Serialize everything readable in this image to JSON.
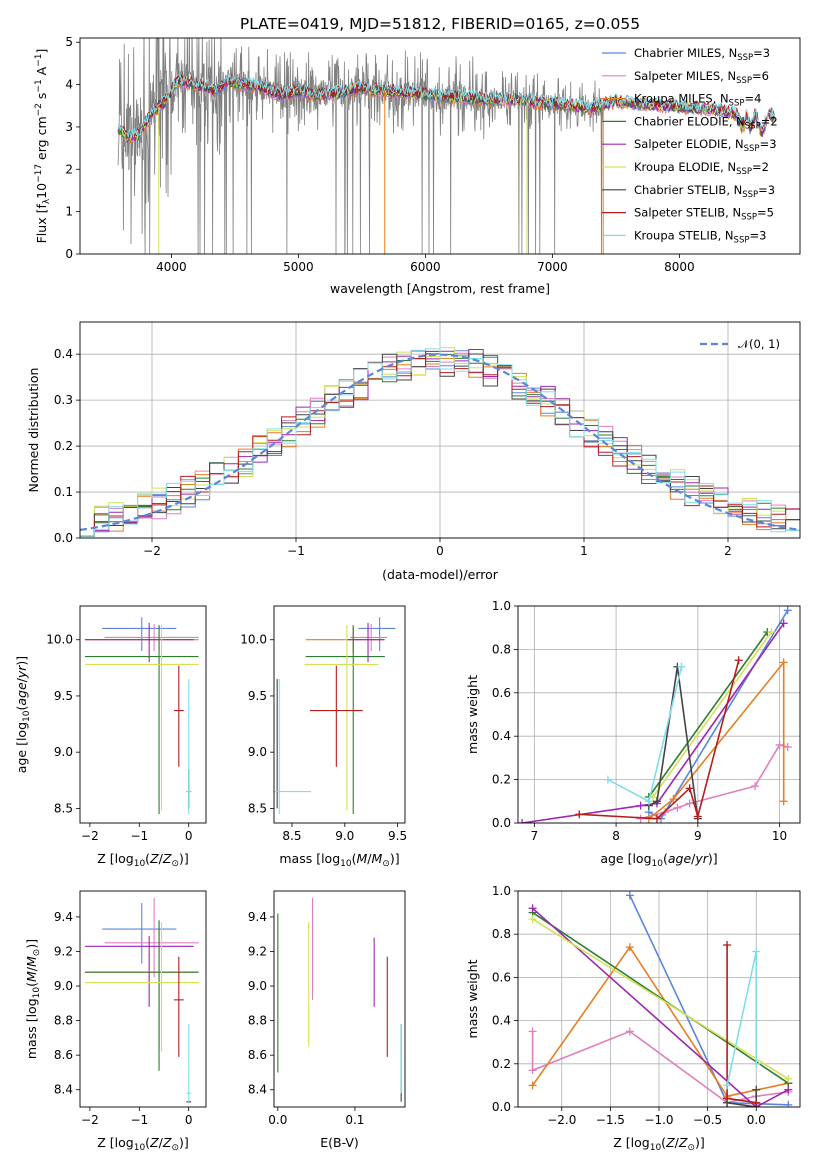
{
  "title": "PLATE=0419, MJD=51812, FIBERID=0165, z=0.055",
  "colors": {
    "chabrier_miles": "#5b86d9",
    "salpeter_miles": "#e07fbd",
    "kroupa_miles": "#e67e22",
    "chabrier_elodie": "#2e7d32",
    "salpeter_elodie": "#9c27b0",
    "kroupa_elodie": "#d4e157",
    "chabrier_stelib": "#444444",
    "salpeter_stelib": "#b71c1c",
    "kroupa_stelib": "#80deea",
    "data": "#808080",
    "normal": "#5b86d9"
  },
  "legend": [
    {
      "key": "chabrier_miles",
      "label": "Chabrier MILES, N",
      "sub": "SSP",
      "tail": "=3"
    },
    {
      "key": "salpeter_miles",
      "label": "Salpeter MILES, N",
      "sub": "SSP",
      "tail": "=6"
    },
    {
      "key": "kroupa_miles",
      "label": "Kroupa MILES, N",
      "sub": "SSP",
      "tail": "=4"
    },
    {
      "key": "chabrier_elodie",
      "label": "Chabrier ELODIE, N",
      "sub": "SSP",
      "tail": "=2"
    },
    {
      "key": "salpeter_elodie",
      "label": "Salpeter ELODIE, N",
      "sub": "SSP",
      "tail": "=3"
    },
    {
      "key": "kroupa_elodie",
      "label": "Kroupa ELODIE, N",
      "sub": "SSP",
      "tail": "=2"
    },
    {
      "key": "chabrier_stelib",
      "label": "Chabrier STELIB, N",
      "sub": "SSP",
      "tail": "=3"
    },
    {
      "key": "salpeter_stelib",
      "label": "Salpeter STELIB, N",
      "sub": "SSP",
      "tail": "=5"
    },
    {
      "key": "kroupa_stelib",
      "label": "Kroupa STELIB, N",
      "sub": "SSP",
      "tail": "=3"
    }
  ],
  "chart_data": [
    {
      "id": "spectrum",
      "type": "line",
      "xlabel": "wavelength [Angstrom, rest frame]",
      "ylabel": "Flux [f_λ 10^-17 erg cm^-2 s^-1 A^-1]",
      "xlim": [
        3280,
        8950
      ],
      "ylim": [
        0,
        5.1
      ],
      "xticks": [
        4000,
        5000,
        6000,
        7000,
        8000
      ],
      "yticks": [
        0,
        1,
        2,
        3,
        4,
        5
      ],
      "continuum": [
        [
          3580,
          3.0
        ],
        [
          3650,
          2.75
        ],
        [
          3750,
          2.85
        ],
        [
          3850,
          3.35
        ],
        [
          3950,
          3.6
        ],
        [
          4050,
          4.1
        ],
        [
          4150,
          4.05
        ],
        [
          4250,
          3.95
        ],
        [
          4350,
          3.85
        ],
        [
          4450,
          4.1
        ],
        [
          4550,
          4.0
        ],
        [
          4700,
          3.95
        ],
        [
          4850,
          3.75
        ],
        [
          5000,
          3.85
        ],
        [
          5150,
          3.75
        ],
        [
          5300,
          3.8
        ],
        [
          5500,
          3.9
        ],
        [
          5700,
          3.85
        ],
        [
          5900,
          3.8
        ],
        [
          6100,
          3.72
        ],
        [
          6300,
          3.7
        ],
        [
          6500,
          3.65
        ],
        [
          6700,
          3.65
        ],
        [
          6900,
          3.58
        ],
        [
          7100,
          3.52
        ],
        [
          7300,
          3.45
        ],
        [
          7500,
          3.6
        ],
        [
          7700,
          3.55
        ],
        [
          7900,
          3.5
        ],
        [
          8100,
          3.45
        ],
        [
          8300,
          3.4
        ],
        [
          8450,
          3.3
        ],
        [
          8500,
          2.95
        ],
        [
          8530,
          3.3
        ],
        [
          8560,
          2.95
        ],
        [
          8600,
          3.3
        ],
        [
          8650,
          2.85
        ],
        [
          8700,
          3.3
        ],
        [
          8750,
          3.25
        ]
      ]
    },
    {
      "id": "residuals",
      "type": "histogram",
      "xlabel": "(data-model)/error",
      "ylabel": "Normed distribution",
      "xlim": [
        -2.5,
        2.5
      ],
      "ylim": [
        0,
        0.47
      ],
      "xticks": [
        -2,
        -1,
        0,
        1,
        2
      ],
      "yticks": [
        0.0,
        0.1,
        0.2,
        0.3,
        0.4
      ],
      "normal_label": "𝒩(0, 1)",
      "bin_width": 0.1
    },
    {
      "id": "age_vs_Z",
      "type": "scatter",
      "xlabel": "Z [log10(Z/Z☉)]",
      "ylabel": "age [log10(age/yr)]",
      "xlim": [
        -2.2,
        0.35
      ],
      "ylim": [
        8.37,
        10.3
      ],
      "xticks": [
        -2,
        -1,
        0
      ],
      "yticks": [
        8.5,
        9.0,
        9.5,
        10.0
      ],
      "points": [
        {
          "key": "chabrier_miles",
          "x": -0.95,
          "xerr": [
            0.8,
            0.7
          ],
          "y": 10.1,
          "yerr": [
            0.2,
            0.1
          ]
        },
        {
          "key": "salpeter_miles",
          "x": -0.7,
          "xerr": [
            1.0,
            0.9
          ],
          "y": 10.02,
          "yerr": [
            0.12,
            0.12
          ]
        },
        {
          "key": "kroupa_miles",
          "x": -0.6,
          "xerr": [
            1.5,
            0.8
          ],
          "y": 10.0,
          "yerr": [
            0.12,
            0.12
          ]
        },
        {
          "key": "chabrier_elodie",
          "x": -0.6,
          "xerr": [
            1.5,
            0.8
          ],
          "y": 9.85,
          "yerr": [
            1.4,
            0.28
          ]
        },
        {
          "key": "salpeter_elodie",
          "x": -0.8,
          "xerr": [
            1.3,
            0.9
          ],
          "y": 10.0,
          "yerr": [
            0.2,
            0.15
          ]
        },
        {
          "key": "kroupa_elodie",
          "x": -0.55,
          "xerr": [
            1.55,
            0.75
          ],
          "y": 9.78,
          "yerr": [
            1.3,
            0.35
          ]
        },
        {
          "key": "chabrier_stelib",
          "x": 0.0,
          "xerr": [
            0.05,
            0.05
          ],
          "y": 8.65,
          "yerr": [
            0.15,
            0.2
          ]
        },
        {
          "key": "salpeter_stelib",
          "x": -0.2,
          "xerr": [
            0.1,
            0.1
          ],
          "y": 9.37,
          "yerr": [
            0.5,
            0.4
          ]
        },
        {
          "key": "kroupa_stelib",
          "x": 0.0,
          "xerr": [
            0.05,
            0.05
          ],
          "y": 8.65,
          "yerr": [
            0.2,
            1.0
          ]
        }
      ]
    },
    {
      "id": "age_vs_mass",
      "type": "scatter",
      "xlabel": "mass [log10(M/M☉)]",
      "ylabel": "",
      "xlim": [
        8.33,
        9.57
      ],
      "ylim": [
        8.37,
        10.3
      ],
      "xticks": [
        8.5,
        9.0,
        9.5
      ],
      "yticks": [
        8.5,
        9.0,
        9.5,
        10.0
      ],
      "points": [
        {
          "key": "chabrier_miles",
          "x": 9.33,
          "xerr": [
            0.2,
            0.15
          ],
          "y": 10.1,
          "yerr": [
            0.2,
            0.1
          ]
        },
        {
          "key": "salpeter_miles",
          "x": 9.25,
          "xerr": [
            0.2,
            0.15
          ],
          "y": 10.02,
          "yerr": [
            0.12,
            0.12
          ]
        },
        {
          "key": "kroupa_miles",
          "x": 9.08,
          "xerr": [
            0.45,
            0.3
          ],
          "y": 10.0,
          "yerr": [
            0.12,
            0.12
          ]
        },
        {
          "key": "chabrier_elodie",
          "x": 9.08,
          "xerr": [
            0.45,
            0.3
          ],
          "y": 9.85,
          "yerr": [
            1.4,
            0.28
          ]
        },
        {
          "key": "salpeter_elodie",
          "x": 9.22,
          "xerr": [
            0.2,
            0.15
          ],
          "y": 10.0,
          "yerr": [
            0.2,
            0.15
          ]
        },
        {
          "key": "kroupa_elodie",
          "x": 9.02,
          "xerr": [
            0.4,
            0.3
          ],
          "y": 9.78,
          "yerr": [
            1.3,
            0.35
          ]
        },
        {
          "key": "chabrier_stelib",
          "x": 8.36,
          "xerr": [
            0.02,
            0.02
          ],
          "y": 8.65,
          "yerr": [
            0.15,
            1.0
          ]
        },
        {
          "key": "salpeter_stelib",
          "x": 8.92,
          "xerr": [
            0.25,
            0.25
          ],
          "y": 9.37,
          "yerr": [
            0.5,
            0.4
          ]
        },
        {
          "key": "kroupa_stelib",
          "x": 8.38,
          "xerr": [
            0.05,
            0.3
          ],
          "y": 8.65,
          "yerr": [
            0.2,
            1.0
          ]
        }
      ]
    },
    {
      "id": "mw_vs_age",
      "type": "line",
      "xlabel": "age [log10(age/yr)]",
      "ylabel": "mass weight",
      "xlim": [
        6.8,
        10.25
      ],
      "ylim": [
        0,
        1.0
      ],
      "xticks": [
        7,
        8,
        9,
        10
      ],
      "yticks": [
        0.0,
        0.2,
        0.4,
        0.6,
        0.8,
        1.0
      ],
      "series": [
        {
          "key": "chabrier_miles",
          "x": [
            8.4,
            8.55,
            10.1
          ],
          "y": [
            0.05,
            0.02,
            0.98
          ]
        },
        {
          "key": "salpeter_miles",
          "x": [
            8.3,
            8.6,
            8.75,
            8.9,
            9.7,
            10.0,
            10.1
          ],
          "y": [
            0.02,
            0.05,
            0.07,
            0.09,
            0.17,
            0.36,
            0.35
          ]
        },
        {
          "key": "kroupa_miles",
          "x": [
            8.4,
            8.7,
            10.05,
            10.05
          ],
          "y": [
            0.02,
            0.11,
            0.74,
            0.1
          ]
        },
        {
          "key": "chabrier_elodie",
          "x": [
            8.4,
            9.85
          ],
          "y": [
            0.12,
            0.88
          ]
        },
        {
          "key": "salpeter_elodie",
          "x": [
            6.85,
            8.3,
            8.5,
            10.05
          ],
          "y": [
            0.0,
            0.08,
            0.09,
            0.92
          ]
        },
        {
          "key": "kroupa_elodie",
          "x": [
            8.45,
            9.9
          ],
          "y": [
            0.12,
            0.88
          ]
        },
        {
          "key": "chabrier_stelib",
          "x": [
            8.4,
            8.5,
            8.75,
            9.0
          ],
          "y": [
            0.08,
            0.1,
            0.72,
            0.02
          ]
        },
        {
          "key": "salpeter_stelib",
          "x": [
            7.55,
            8.5,
            8.9,
            9.0,
            9.5
          ],
          "y": [
            0.04,
            0.02,
            0.16,
            0.03,
            0.75
          ]
        },
        {
          "key": "kroupa_stelib",
          "x": [
            7.9,
            8.4,
            8.8,
            8.8
          ],
          "y": [
            0.2,
            0.1,
            0.72,
            0.72
          ]
        }
      ]
    },
    {
      "id": "mass_vs_Z",
      "type": "scatter",
      "xlabel": "Z [log10(Z/Z☉)]",
      "ylabel": "mass [log10(M/M☉)]",
      "xlim": [
        -2.2,
        0.35
      ],
      "ylim": [
        8.3,
        9.55
      ],
      "xticks": [
        -2,
        -1,
        0
      ],
      "yticks": [
        8.4,
        8.6,
        8.8,
        9.0,
        9.2,
        9.4
      ],
      "points": [
        {
          "key": "chabrier_miles",
          "x": -0.95,
          "xerr": [
            0.8,
            0.7
          ],
          "y": 9.33,
          "yerr": [
            0.2,
            0.15
          ]
        },
        {
          "key": "salpeter_miles",
          "x": -0.7,
          "xerr": [
            1.0,
            0.9
          ],
          "y": 9.25,
          "yerr": [
            0.2,
            0.26
          ]
        },
        {
          "key": "kroupa_miles",
          "x": -0.6,
          "xerr": [
            1.5,
            0.8
          ],
          "y": 9.08,
          "yerr": [
            0.45,
            0.3
          ]
        },
        {
          "key": "chabrier_elodie",
          "x": -0.6,
          "xerr": [
            1.5,
            0.8
          ],
          "y": 9.08,
          "yerr": [
            0.57,
            0.3
          ]
        },
        {
          "key": "salpeter_elodie",
          "x": -0.8,
          "xerr": [
            1.3,
            0.9
          ],
          "y": 9.23,
          "yerr": [
            0.35,
            0.06
          ]
        },
        {
          "key": "kroupa_elodie",
          "x": -0.55,
          "xerr": [
            1.55,
            0.75
          ],
          "y": 9.02,
          "yerr": [
            0.4,
            0.35
          ]
        },
        {
          "key": "chabrier_stelib",
          "x": 0.0,
          "xerr": [
            0.05,
            0.05
          ],
          "y": 8.33,
          "yerr": [
            0.0,
            0.0
          ]
        },
        {
          "key": "salpeter_stelib",
          "x": -0.2,
          "xerr": [
            0.1,
            0.1
          ],
          "y": 8.92,
          "yerr": [
            0.33,
            0.25
          ]
        },
        {
          "key": "kroupa_stelib",
          "x": 0.0,
          "xerr": [
            0.05,
            0.05
          ],
          "y": 8.38,
          "yerr": [
            0.05,
            0.4
          ]
        }
      ]
    },
    {
      "id": "mass_vs_ebv",
      "type": "scatter",
      "xlabel": "E(B-V)",
      "ylabel": "",
      "xlim": [
        -0.005,
        0.165
      ],
      "ylim": [
        8.3,
        9.55
      ],
      "xticks": [
        0.0,
        0.1
      ],
      "yticks": [
        8.4,
        8.6,
        8.8,
        9.0,
        9.2,
        9.4
      ],
      "points": [
        {
          "key": "chabrier_elodie",
          "x": 0.0,
          "y": 9.0,
          "yerr": [
            0.5,
            0.42
          ]
        },
        {
          "key": "salpeter_miles",
          "x": 0.045,
          "y": 9.25,
          "yerr": [
            0.33,
            0.26
          ]
        },
        {
          "key": "kroupa_elodie",
          "x": 0.04,
          "y": 9.1,
          "yerr": [
            0.45,
            0.27
          ]
        },
        {
          "key": "salpeter_elodie",
          "x": 0.125,
          "y": 9.1,
          "yerr": [
            0.22,
            0.18
          ]
        },
        {
          "key": "salpeter_stelib",
          "x": 0.142,
          "y": 8.92,
          "yerr": [
            0.33,
            0.25
          ]
        },
        {
          "key": "chabrier_stelib",
          "x": 0.16,
          "y": 8.55,
          "yerr": [
            0.22,
            0.23
          ]
        },
        {
          "key": "kroupa_stelib",
          "x": 0.16,
          "y": 8.58,
          "yerr": [
            0.2,
            0.2
          ]
        }
      ]
    },
    {
      "id": "mw_vs_Z",
      "type": "line",
      "xlabel": "Z [log10(Z/Z☉)]",
      "ylabel": "mass weight",
      "xlim": [
        -2.45,
        0.45
      ],
      "ylim": [
        0,
        1.0
      ],
      "xticks": [
        -2.0,
        -1.5,
        -1.0,
        -0.5,
        0.0
      ],
      "yticks": [
        0.0,
        0.2,
        0.4,
        0.6,
        0.8,
        1.0
      ],
      "series": [
        {
          "key": "chabrier_miles",
          "x": [
            -1.3,
            -0.3,
            0.33
          ],
          "y": [
            0.98,
            0.02,
            0.01
          ]
        },
        {
          "key": "salpeter_miles",
          "x": [
            -2.3,
            -2.3,
            -1.3,
            -0.3,
            0.0,
            0.33
          ],
          "y": [
            0.35,
            0.17,
            0.35,
            0.02,
            0.05,
            0.07
          ]
        },
        {
          "key": "kroupa_miles",
          "x": [
            -2.3,
            -1.3,
            -0.3,
            0.33
          ],
          "y": [
            0.1,
            0.74,
            0.05,
            0.11
          ]
        },
        {
          "key": "chabrier_elodie",
          "x": [
            -2.3,
            0.33
          ],
          "y": [
            0.9,
            0.11
          ]
        },
        {
          "key": "salpeter_elodie",
          "x": [
            -2.3,
            0.0,
            0.33
          ],
          "y": [
            0.92,
            0.0,
            0.08
          ]
        },
        {
          "key": "kroupa_elodie",
          "x": [
            -2.3,
            0.33
          ],
          "y": [
            0.87,
            0.13
          ]
        },
        {
          "key": "chabrier_stelib",
          "x": [
            -0.3,
            0.0,
            0.0
          ],
          "y": [
            0.02,
            0.0,
            0.08
          ]
        },
        {
          "key": "salpeter_stelib",
          "x": [
            -0.3,
            -0.3,
            0.0
          ],
          "y": [
            0.75,
            0.04,
            0.02
          ]
        },
        {
          "key": "kroupa_stelib",
          "x": [
            -0.3,
            0.0,
            0.0
          ],
          "y": [
            0.1,
            0.72,
            0.2
          ]
        }
      ]
    }
  ]
}
